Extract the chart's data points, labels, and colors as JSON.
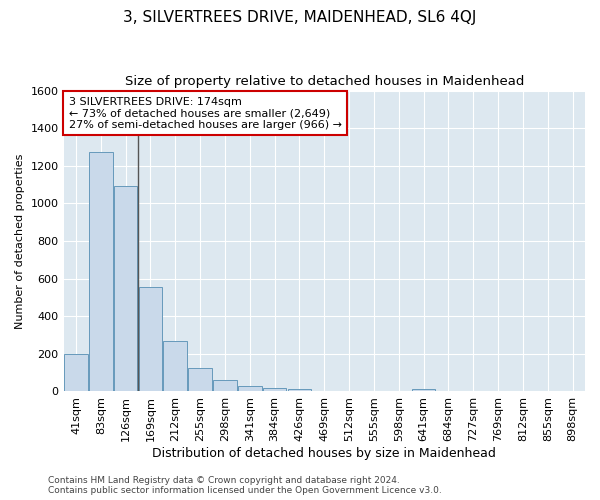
{
  "title": "3, SILVERTREES DRIVE, MAIDENHEAD, SL6 4QJ",
  "subtitle": "Size of property relative to detached houses in Maidenhead",
  "xlabel": "Distribution of detached houses by size in Maidenhead",
  "ylabel": "Number of detached properties",
  "footer_line1": "Contains HM Land Registry data © Crown copyright and database right 2024.",
  "footer_line2": "Contains public sector information licensed under the Open Government Licence v3.0.",
  "categories": [
    "41sqm",
    "83sqm",
    "126sqm",
    "169sqm",
    "212sqm",
    "255sqm",
    "298sqm",
    "341sqm",
    "384sqm",
    "426sqm",
    "469sqm",
    "512sqm",
    "555sqm",
    "598sqm",
    "641sqm",
    "684sqm",
    "727sqm",
    "769sqm",
    "812sqm",
    "855sqm",
    "898sqm"
  ],
  "values": [
    200,
    1275,
    1095,
    555,
    270,
    125,
    60,
    30,
    20,
    15,
    5,
    5,
    0,
    0,
    15,
    0,
    0,
    0,
    0,
    0,
    0
  ],
  "bar_color": "#c9d9ea",
  "bar_edge_color": "#6699bb",
  "background_color": "#dde8f0",
  "grid_color": "#ffffff",
  "annotation_box_text": "3 SILVERTREES DRIVE: 174sqm\n← 73% of detached houses are smaller (2,649)\n27% of semi-detached houses are larger (966) →",
  "annotation_box_color": "#cc0000",
  "vline_x": 2.5,
  "vline_color": "#555555",
  "ylim": [
    0,
    1600
  ],
  "yticks": [
    0,
    200,
    400,
    600,
    800,
    1000,
    1200,
    1400,
    1600
  ],
  "title_fontsize": 11,
  "subtitle_fontsize": 9.5,
  "xlabel_fontsize": 9,
  "ylabel_fontsize": 8,
  "tick_fontsize": 8,
  "annotation_fontsize": 8,
  "footer_fontsize": 6.5
}
